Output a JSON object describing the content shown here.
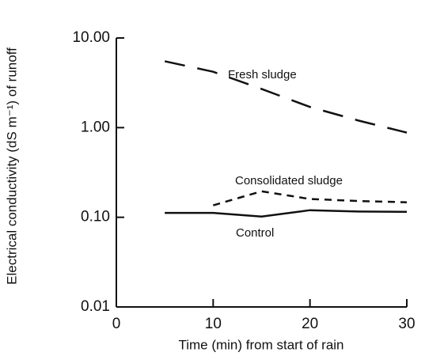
{
  "chart_data": {
    "type": "line",
    "xlabel": "Time (min) from start of rain",
    "ylabel": "Electrical conductivity (dS m⁻¹) of runoff",
    "x": [
      5,
      10,
      15,
      20,
      25,
      30
    ],
    "series": [
      {
        "name": "Fresh sludge",
        "color": "#111111",
        "linestyle": "long-dash",
        "values": [
          5.5,
          4.2,
          2.7,
          1.7,
          1.2,
          0.88
        ]
      },
      {
        "name": "Consolidated sludge",
        "color": "#111111",
        "linestyle": "short-dash",
        "values": [
          null,
          0.136,
          0.195,
          0.16,
          0.152,
          0.147
        ]
      },
      {
        "name": "Control",
        "color": "#111111",
        "linestyle": "solid",
        "values": [
          0.112,
          0.112,
          0.102,
          0.12,
          0.116,
          0.115
        ]
      }
    ],
    "xlim": [
      0,
      30
    ],
    "xticks": [
      0,
      10,
      20,
      30
    ],
    "ylim": [
      0.01,
      10
    ],
    "yticks": [
      {
        "value": 0.01,
        "label": "0.01"
      },
      {
        "value": 0.1,
        "label": "0.10"
      },
      {
        "value": 1,
        "label": "1.00"
      },
      {
        "value": 10,
        "label": "10.00"
      }
    ],
    "ylog": true,
    "grid": false
  }
}
